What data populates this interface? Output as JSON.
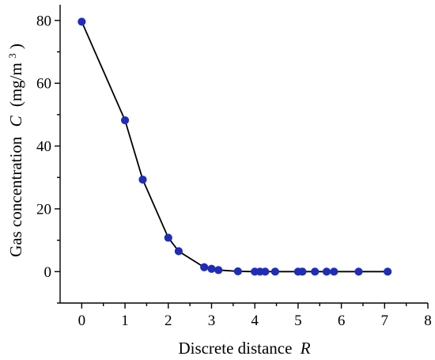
{
  "chart_data": {
    "type": "line",
    "title": "",
    "xlabel": {
      "main": "Discrete distance",
      "var": "R"
    },
    "ylabel": {
      "main": "Gas concentration",
      "var": "C",
      "unit_open": "(mg/m",
      "unit_sup": "3",
      "unit_close": ")"
    },
    "xlim": [
      -0.5,
      8
    ],
    "ylim": [
      -10,
      85
    ],
    "x_ticks": [
      0,
      1,
      2,
      3,
      4,
      5,
      6,
      7,
      8
    ],
    "y_ticks": [
      0,
      20,
      40,
      60,
      80
    ],
    "grid": false,
    "series": [
      {
        "color": "#1f2db8",
        "line_color": "#000000",
        "marker": "circle",
        "points": [
          {
            "x": 0.0,
            "y": 79.6
          },
          {
            "x": 1.0,
            "y": 48.2
          },
          {
            "x": 1.41,
            "y": 29.3
          },
          {
            "x": 2.0,
            "y": 10.8
          },
          {
            "x": 2.24,
            "y": 6.5
          },
          {
            "x": 2.83,
            "y": 1.4
          },
          {
            "x": 3.0,
            "y": 0.9
          },
          {
            "x": 3.16,
            "y": 0.5
          },
          {
            "x": 3.61,
            "y": 0.1
          },
          {
            "x": 4.0,
            "y": 0.0
          },
          {
            "x": 4.12,
            "y": 0.0
          },
          {
            "x": 4.24,
            "y": 0.0
          },
          {
            "x": 4.47,
            "y": 0.0
          },
          {
            "x": 5.0,
            "y": 0.0
          },
          {
            "x": 5.1,
            "y": 0.0
          },
          {
            "x": 5.39,
            "y": 0.0
          },
          {
            "x": 5.66,
            "y": 0.0
          },
          {
            "x": 5.83,
            "y": 0.0
          },
          {
            "x": 6.4,
            "y": 0.0
          },
          {
            "x": 7.07,
            "y": 0.0
          }
        ]
      }
    ]
  }
}
